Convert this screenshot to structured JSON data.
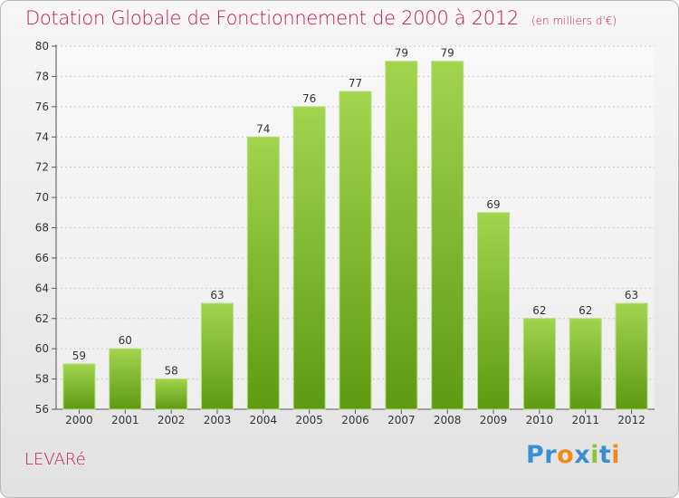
{
  "header": {
    "title": "Dotation Globale de Fonctionnement de 2000 à 2012",
    "unit": "(en milliers d'€)"
  },
  "footer": {
    "commune": "LEVARé",
    "logo_letters": [
      {
        "ch": "P",
        "color": "#3a8fd0"
      },
      {
        "ch": "r",
        "color": "#3a8fd0"
      },
      {
        "ch": "o",
        "color": "#f08a1c"
      },
      {
        "ch": "x",
        "color": "#3a8fd0"
      },
      {
        "ch": "i",
        "color": "#8cc63f"
      },
      {
        "ch": "t",
        "color": "#3a8fd0"
      },
      {
        "ch": "i",
        "color": "#f08a1c"
      }
    ]
  },
  "chart_data": {
    "type": "bar",
    "title": "Dotation Globale de Fonctionnement de 2000 à 2012",
    "subtitle": "(en milliers d'€)",
    "categories": [
      "2000",
      "2001",
      "2002",
      "2003",
      "2004",
      "2005",
      "2006",
      "2007",
      "2008",
      "2009",
      "2010",
      "2011",
      "2012"
    ],
    "values": [
      59,
      60,
      58,
      63,
      74,
      76,
      77,
      79,
      79,
      69,
      62,
      62,
      63
    ],
    "ylim": [
      56,
      80
    ],
    "yticks": [
      56,
      58,
      60,
      62,
      64,
      66,
      68,
      70,
      72,
      74,
      76,
      78,
      80
    ],
    "grid": true,
    "bar_color": "#7dbb2a",
    "xlabel": "",
    "ylabel": ""
  }
}
